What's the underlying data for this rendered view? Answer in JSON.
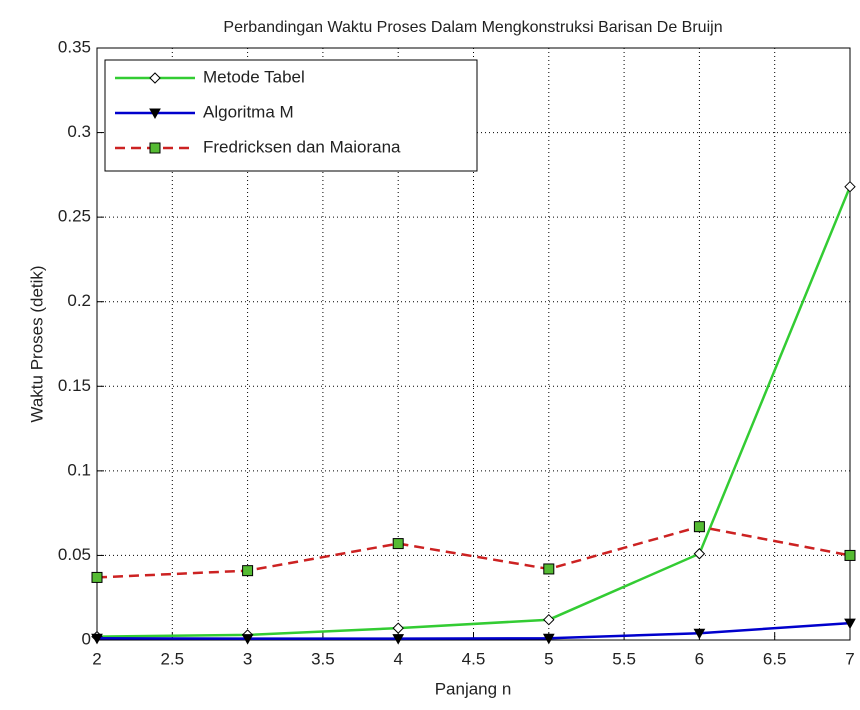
{
  "chart_data": {
    "type": "line",
    "title": "Perbandingan Waktu Proses Dalam Mengkonstruksi Barisan De Bruijn",
    "x_label": "Panjang n",
    "y_label": "Waktu Proses (detik)",
    "x": [
      2,
      3,
      4,
      5,
      6,
      7
    ],
    "series": [
      {
        "name": "Metode Tabel",
        "color": "#33cc33",
        "marker": "diamond",
        "marker_fill": "#ffffff",
        "linestyle": "solid",
        "values": [
          0.002,
          0.003,
          0.007,
          0.012,
          0.051,
          0.268
        ]
      },
      {
        "name": "Algoritma M",
        "color": "#0000cc",
        "marker": "triangle-down",
        "marker_fill": "#000000",
        "linestyle": "solid",
        "values": [
          0.001,
          0.0008,
          0.0008,
          0.001,
          0.004,
          0.01
        ]
      },
      {
        "name": "Fredricksen dan Maiorana",
        "color": "#cc2222",
        "marker": "square",
        "marker_fill": "#55bb33",
        "linestyle": "dashed",
        "values": [
          0.037,
          0.041,
          0.057,
          0.042,
          0.067,
          0.05
        ]
      }
    ],
    "xlim": [
      2,
      7
    ],
    "xticks": [
      2,
      2.5,
      3,
      3.5,
      4,
      4.5,
      5,
      5.5,
      6,
      6.5,
      7
    ],
    "ylim": [
      0,
      0.35
    ],
    "yticks": [
      0,
      0.05,
      0.1,
      0.15,
      0.2,
      0.25,
      0.3,
      0.35
    ],
    "grid": true,
    "legend": "upper-left"
  }
}
